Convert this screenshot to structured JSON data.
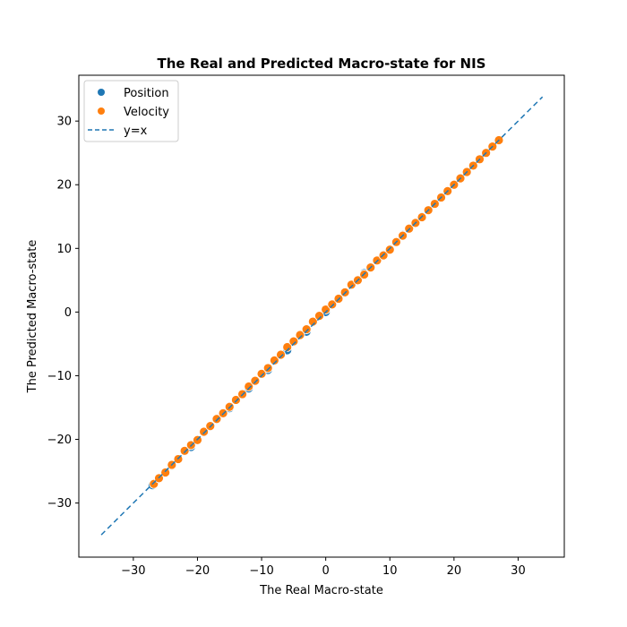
{
  "chart_data": {
    "type": "scatter",
    "title": "The Real and Predicted Macro-state for NIS",
    "xlabel": "The Real Macro-state",
    "ylabel": "The Predicted Macro-state",
    "xlim": [
      -38.5,
      37.2
    ],
    "ylim": [
      -38.5,
      37.2
    ],
    "xticks": [
      -30,
      -20,
      -10,
      0,
      10,
      20,
      30
    ],
    "yticks": [
      -30,
      -20,
      -10,
      0,
      10,
      20,
      30
    ],
    "xtick_labels": [
      "−30",
      "−20",
      "−10",
      "0",
      "10",
      "20",
      "30"
    ],
    "ytick_labels": [
      "−30",
      "−20",
      "−10",
      "0",
      "10",
      "20",
      "30"
    ],
    "grid": false,
    "legend_position": "top-left",
    "series": [
      {
        "name": "Position",
        "kind": "scatter",
        "color": "#1f77b4",
        "x": [
          -27,
          -24,
          -21,
          -18,
          -15,
          -12,
          -9,
          -6,
          -3,
          0,
          3,
          6,
          9,
          12,
          15,
          18,
          21,
          24,
          27
        ],
        "y": [
          -27.2,
          -24.1,
          -21.2,
          -18.0,
          -15.1,
          -12.0,
          -9.1,
          -6.0,
          -3.1,
          0.0,
          3.0,
          6.1,
          9.0,
          12.1,
          15.0,
          18.1,
          21.0,
          24.1,
          27.0
        ]
      },
      {
        "name": "Velocity",
        "kind": "scatter",
        "color": "#ff7f0e",
        "x": [
          -26.8,
          -26,
          -25,
          -24,
          -23,
          -22,
          -21,
          -20,
          -19,
          -18,
          -17,
          -16,
          -15,
          -14,
          -13,
          -12,
          -11,
          -10,
          -9,
          -8,
          -7,
          -6,
          -5,
          -4,
          -3,
          -2,
          -1,
          0,
          1,
          2,
          3,
          4,
          5,
          6,
          7,
          8,
          9,
          10,
          11,
          12,
          13,
          14,
          15,
          16,
          17,
          18,
          19,
          20,
          21,
          22,
          23,
          24,
          25,
          26,
          27
        ],
        "y": [
          -27.0,
          -26.1,
          -25.2,
          -24.0,
          -23.1,
          -21.8,
          -20.9,
          -20.1,
          -18.8,
          -17.9,
          -16.8,
          -15.9,
          -14.9,
          -13.8,
          -12.9,
          -11.7,
          -10.8,
          -9.7,
          -8.8,
          -7.6,
          -6.7,
          -5.5,
          -4.6,
          -3.6,
          -2.7,
          -1.5,
          -0.6,
          0.4,
          1.2,
          2.1,
          3.1,
          4.3,
          5.0,
          5.9,
          7.0,
          8.1,
          8.9,
          9.8,
          11.0,
          12.0,
          13.1,
          14.0,
          14.9,
          16.0,
          17.0,
          18.0,
          19.0,
          20.0,
          21.0,
          22.0,
          23.0,
          24.0,
          25.0,
          26.0,
          27.0
        ]
      },
      {
        "name": "y=x",
        "kind": "line",
        "style": "dashed",
        "color": "#1f77b4",
        "x": [
          -35,
          33.8
        ],
        "y": [
          -35,
          33.8
        ]
      }
    ]
  }
}
